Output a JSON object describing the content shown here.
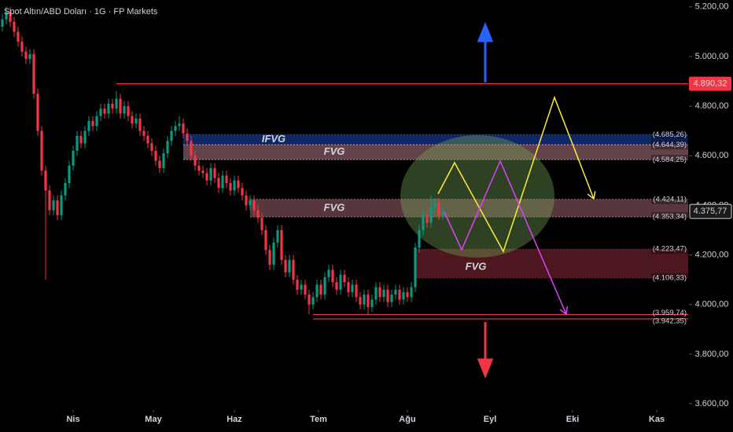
{
  "chart_data": {
    "type": "candlestick",
    "title": "Spot Altın/ABD Doları · 1G · FP Markets",
    "up_color": "#089981",
    "down_color": "#f23645",
    "xlim": [
      -0.6,
      174.4
    ],
    "ylim": [
      3581,
      5228
    ],
    "xticks": [
      {
        "value": 18,
        "label": "Nis"
      },
      {
        "value": 38.4,
        "label": "May"
      },
      {
        "value": 59,
        "label": "Haz"
      },
      {
        "value": 80.4,
        "label": "Tem"
      },
      {
        "value": 103,
        "label": "Ağu"
      },
      {
        "value": 124,
        "label": "Eyl"
      },
      {
        "value": 145,
        "label": "Eki"
      },
      {
        "value": 166.4,
        "label": "Kas"
      }
    ],
    "yticks": [
      {
        "value": 5200,
        "label": "5.200,00"
      },
      {
        "value": 5000,
        "label": "5.000,00"
      },
      {
        "value": 4800,
        "label": "4.800,00"
      },
      {
        "value": 4600,
        "label": "4.600,00"
      },
      {
        "value": 4400,
        "label": "4.400,00"
      },
      {
        "value": 4200,
        "label": "4.200,00"
      },
      {
        "value": 4000,
        "label": "4.000,00"
      },
      {
        "value": 3800,
        "label": "3.800,00"
      },
      {
        "value": 3600,
        "label": "3.600,00"
      }
    ],
    "open": [
      5120,
      5150,
      5180,
      5140,
      5100,
      5060,
      5020,
      4990,
      5010,
      4850,
      4700,
      4540,
      4460,
      4380,
      4420,
      4360,
      4440,
      4490,
      4560,
      4620,
      4680,
      4650,
      4700,
      4740,
      4720,
      4760,
      4790,
      4770,
      4810,
      4790,
      4830,
      4770,
      4800,
      4760,
      4730,
      4750,
      4700,
      4680,
      4650,
      4620,
      4580,
      4550,
      4610,
      4660,
      4700,
      4720,
      4730,
      4690,
      4660,
      4600,
      4560,
      4540,
      4530,
      4500,
      4550,
      4510,
      4470,
      4520,
      4490,
      4460,
      4500,
      4470,
      4440,
      4400,
      4420,
      4380,
      4350,
      4300,
      4220,
      4160,
      4250,
      4300,
      4180,
      4130,
      4180,
      4100,
      4060,
      4080,
      4040,
      4000,
      4030,
      4080,
      4040,
      4110,
      4140,
      4090,
      4060,
      4120,
      4090,
      4050,
      4080,
      4030,
      4000,
      4040,
      3990,
      4020,
      4070,
      4030,
      4060,
      4010,
      4040,
      4060,
      4020,
      4050,
      4030,
      4070,
      4230,
      4300,
      4360,
      4330,
      4390,
      4410,
      4360
    ],
    "high": [
      5170,
      5200,
      5200,
      5160,
      5120,
      5080,
      5040,
      5030,
      5030,
      4870,
      4720,
      4560,
      4480,
      4440,
      4440,
      4460,
      4510,
      4580,
      4640,
      4700,
      4700,
      4720,
      4760,
      4760,
      4780,
      4810,
      4810,
      4830,
      4830,
      4860,
      4850,
      4820,
      4820,
      4780,
      4770,
      4770,
      4720,
      4700,
      4670,
      4640,
      4600,
      4630,
      4680,
      4720,
      4740,
      4760,
      4750,
      4710,
      4680,
      4620,
      4580,
      4560,
      4550,
      4570,
      4570,
      4530,
      4540,
      4540,
      4510,
      4520,
      4520,
      4490,
      4460,
      4440,
      4440,
      4400,
      4370,
      4320,
      4240,
      4270,
      4320,
      4320,
      4200,
      4200,
      4200,
      4120,
      4100,
      4100,
      4060,
      4050,
      4100,
      4100,
      4130,
      4160,
      4160,
      4110,
      4140,
      4140,
      4110,
      4100,
      4100,
      4050,
      4060,
      4060,
      4040,
      4090,
      4090,
      4080,
      4080,
      4060,
      4080,
      4080,
      4070,
      4070,
      4090,
      4250,
      4320,
      4380,
      4380,
      4440,
      4430,
      4430,
      4400
    ],
    "low": [
      5100,
      5130,
      5120,
      5080,
      5040,
      5000,
      4970,
      4970,
      4830,
      4680,
      4520,
      4100,
      4360,
      4360,
      4340,
      4340,
      4420,
      4470,
      4540,
      4600,
      4630,
      4630,
      4680,
      4700,
      4700,
      4740,
      4750,
      4750,
      4770,
      4770,
      4750,
      4750,
      4740,
      4710,
      4710,
      4680,
      4660,
      4630,
      4600,
      4560,
      4530,
      4530,
      4590,
      4640,
      4680,
      4700,
      4670,
      4640,
      4580,
      4540,
      4520,
      4510,
      4480,
      4480,
      4490,
      4450,
      4450,
      4470,
      4440,
      4440,
      4450,
      4420,
      4380,
      4380,
      4360,
      4330,
      4280,
      4200,
      4140,
      4140,
      4230,
      4160,
      4110,
      4110,
      4080,
      4040,
      4040,
      4020,
      3960,
      3980,
      4010,
      4020,
      4020,
      4090,
      4070,
      4040,
      4040,
      4070,
      4030,
      4030,
      4010,
      3980,
      3980,
      3960,
      3970,
      4000,
      4010,
      4010,
      3990,
      3990,
      4020,
      4000,
      4000,
      4010,
      4010,
      4050,
      4210,
      4280,
      4310,
      4310,
      4370,
      4340,
      4340
    ],
    "close": [
      5150,
      5180,
      5140,
      5100,
      5060,
      5020,
      4990,
      5010,
      4850,
      4700,
      4540,
      4460,
      4380,
      4420,
      4360,
      4440,
      4490,
      4560,
      4620,
      4680,
      4650,
      4700,
      4740,
      4720,
      4760,
      4790,
      4770,
      4810,
      4790,
      4830,
      4770,
      4800,
      4760,
      4730,
      4750,
      4700,
      4680,
      4650,
      4620,
      4580,
      4550,
      4610,
      4660,
      4700,
      4720,
      4730,
      4690,
      4660,
      4600,
      4560,
      4540,
      4530,
      4500,
      4550,
      4510,
      4470,
      4520,
      4490,
      4460,
      4500,
      4470,
      4440,
      4400,
      4420,
      4380,
      4350,
      4300,
      4220,
      4160,
      4250,
      4300,
      4180,
      4130,
      4180,
      4100,
      4060,
      4080,
      4040,
      4000,
      4030,
      4080,
      4040,
      4110,
      4140,
      4090,
      4060,
      4120,
      4090,
      4050,
      4080,
      4030,
      4000,
      4040,
      3990,
      4020,
      4070,
      4030,
      4060,
      4010,
      4040,
      4060,
      4020,
      4050,
      4030,
      4070,
      4230,
      4300,
      4360,
      4330,
      4390,
      4410,
      4360,
      4375.77
    ],
    "zones": [
      {
        "name": "IFVG",
        "top": 4685.26,
        "bottom": 4644.39,
        "from": 46,
        "color": "#2962ff",
        "label_color": "#5b83e6"
      },
      {
        "name": "FVG",
        "top": 4644.39,
        "bottom": 4584.25,
        "from": 46,
        "color": "#f7a8b8",
        "label_color": "#e57a8f"
      },
      {
        "name": "FVG",
        "top": 4424.11,
        "bottom": 4353.34,
        "from": 63,
        "color": "#d98a95",
        "label_color": "#e57a8f"
      },
      {
        "name": "FVG",
        "top": 4223.47,
        "bottom": 4106.33,
        "from": 105,
        "color": "#8a2a36",
        "label_color": "#e57a8f"
      }
    ],
    "levels": [
      {
        "value": 4890.32,
        "label": "4.890,32",
        "from": 29,
        "color": "#f23645"
      },
      {
        "value": 3959.74,
        "label": "(3.959,74)",
        "from": 79,
        "color": "#f23645"
      },
      {
        "value": 3942.35,
        "label": "(3.942,35)",
        "from": 79,
        "color": "#f23645"
      }
    ],
    "price_labels": [
      {
        "value": 4685.26,
        "label": "(4.685,26)",
        "color": "#5b83e6"
      },
      {
        "value": 4644.39,
        "label": "(4.644,39)",
        "color": "#9aa3c7"
      },
      {
        "value": 4584.25,
        "label": "(4.584,25)",
        "color": "#d3a5b0"
      },
      {
        "value": 4424.11,
        "label": "(4.424,11)",
        "color": "#d3a5b0"
      },
      {
        "value": 4353.34,
        "label": "(4.353,34)",
        "color": "#d3a5b0"
      },
      {
        "value": 4223.47,
        "label": "(4.223,47)",
        "color": "#b0a0a5"
      },
      {
        "value": 4106.33,
        "label": "(4.106,33)",
        "color": "#b0a0a5"
      }
    ],
    "last_price": {
      "value": 4375.77,
      "label": "4.375,77"
    },
    "projections": [
      {
        "color": "#ffeb3b",
        "x": [
          110.8,
          115,
          127.4,
          140.4,
          150.4
        ],
        "y": [
          4446,
          4572,
          4214,
          4835,
          4426
        ]
      },
      {
        "color": "#e040fb",
        "x": [
          112.4,
          116.8,
          126.6,
          143.4
        ],
        "y": [
          4373,
          4221,
          4579,
          3961
        ]
      }
    ]
  }
}
